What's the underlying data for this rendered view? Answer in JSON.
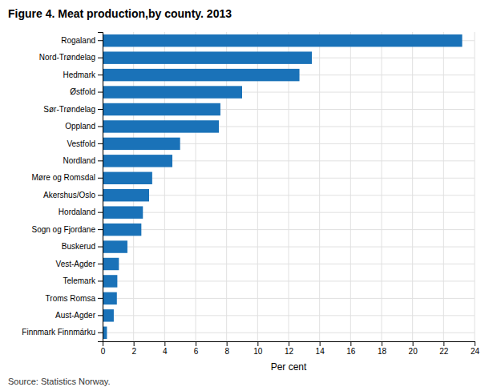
{
  "chart_data": {
    "type": "bar",
    "orientation": "horizontal",
    "title": "Figure 4. Meat production,by county. 2013",
    "xlabel": "Per cent",
    "source": "Source: Statistics Norway.",
    "color": "#1a72b8",
    "grid": true,
    "categories": [
      "Finnmark Finnmárku",
      "Aust-Agder",
      "Troms Romsa",
      "Telemark",
      "Vest-Agder",
      "Buskerud",
      "Sogn og Fjordane",
      "Hordaland",
      "Akershus/Oslo",
      "Møre og Romsdal",
      "Nordland",
      "Vestfold",
      "Oppland",
      "Sør-Trøndelag",
      "Østfold",
      "Hedmark",
      "Nord-Trøndelag",
      "Rogaland"
    ],
    "values": [
      0.28,
      0.72,
      0.92,
      0.95,
      1.05,
      1.6,
      2.5,
      2.6,
      3.0,
      3.2,
      4.5,
      5.0,
      7.5,
      7.6,
      9.0,
      12.7,
      13.5,
      23.2
    ],
    "xlim": [
      0,
      24
    ],
    "xticks": [
      0,
      2,
      4,
      6,
      8,
      10,
      12,
      14,
      16,
      18,
      20,
      22,
      24
    ]
  }
}
